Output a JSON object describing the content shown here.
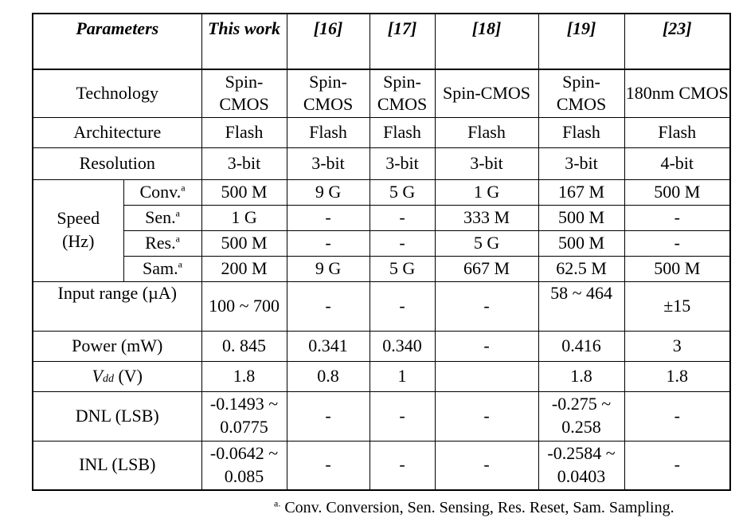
{
  "header": {
    "parameters": "Parameters",
    "this_work": "This work",
    "ref16": "[16]",
    "ref17": "[17]",
    "ref18": "[18]",
    "ref19": "[19]",
    "ref23": "[23]"
  },
  "technology": {
    "label": "Technology",
    "values": [
      "Spin-CMOS",
      "Spin-CMOS",
      "Spin-CMOS",
      "Spin-CMOS",
      "Spin-CMOS",
      "180nm CMOS"
    ]
  },
  "architecture": {
    "label": "Architecture",
    "values": [
      "Flash",
      "Flash",
      "Flash",
      "Flash",
      "Flash",
      "Flash"
    ]
  },
  "resolution": {
    "label": "Resolution",
    "values": [
      "3-bit",
      "3-bit",
      "3-bit",
      "3-bit",
      "3-bit",
      "4-bit"
    ]
  },
  "speed": {
    "label_line1": "Speed",
    "label_line2": "(Hz)",
    "sup": "a",
    "conv": {
      "label": "Conv.",
      "values": [
        "500 M",
        "9 G",
        "5 G",
        "1 G",
        "167 M",
        "500 M"
      ]
    },
    "sen": {
      "label": "Sen.",
      "values": [
        "1 G",
        "-",
        "-",
        "333 M",
        "500 M",
        "-"
      ]
    },
    "res": {
      "label": "Res.",
      "values": [
        "500 M",
        "-",
        "-",
        "5 G",
        "500 M",
        "-"
      ]
    },
    "sam": {
      "label": "Sam.",
      "values": [
        "200 M",
        "9 G",
        "5 G",
        "667 M",
        "62.5 M",
        "500 M"
      ]
    }
  },
  "input_range": {
    "label": "Input range (µA)",
    "values": [
      "100 ~ 700",
      "-",
      "-",
      "-",
      "58 ~ 464",
      "±15"
    ]
  },
  "power": {
    "label": "Power (mW)",
    "values": [
      "0. 845",
      "0.341",
      "0.340",
      "-",
      "0.416",
      "3"
    ]
  },
  "vdd": {
    "symbol": "V",
    "subscript": "dd",
    "unit": " (V)",
    "values": [
      "1.8",
      "0.8",
      "1",
      "",
      "1.8",
      "1.8"
    ]
  },
  "dnl": {
    "label": "DNL (LSB)",
    "values": [
      "-0.1493 ~ 0.0775",
      "-",
      "-",
      "-",
      "-0.275 ~ 0.258",
      "-"
    ]
  },
  "inl": {
    "label": "INL (LSB)",
    "values": [
      "-0.0642 ~ 0.085",
      "-",
      "-",
      "-",
      "-0.2584 ~ 0.0403",
      "-"
    ]
  },
  "footnote": {
    "marker": "a.",
    "text": " Conv. Conversion, Sen. Sensing, Res.  Reset, Sam. Sampling."
  }
}
